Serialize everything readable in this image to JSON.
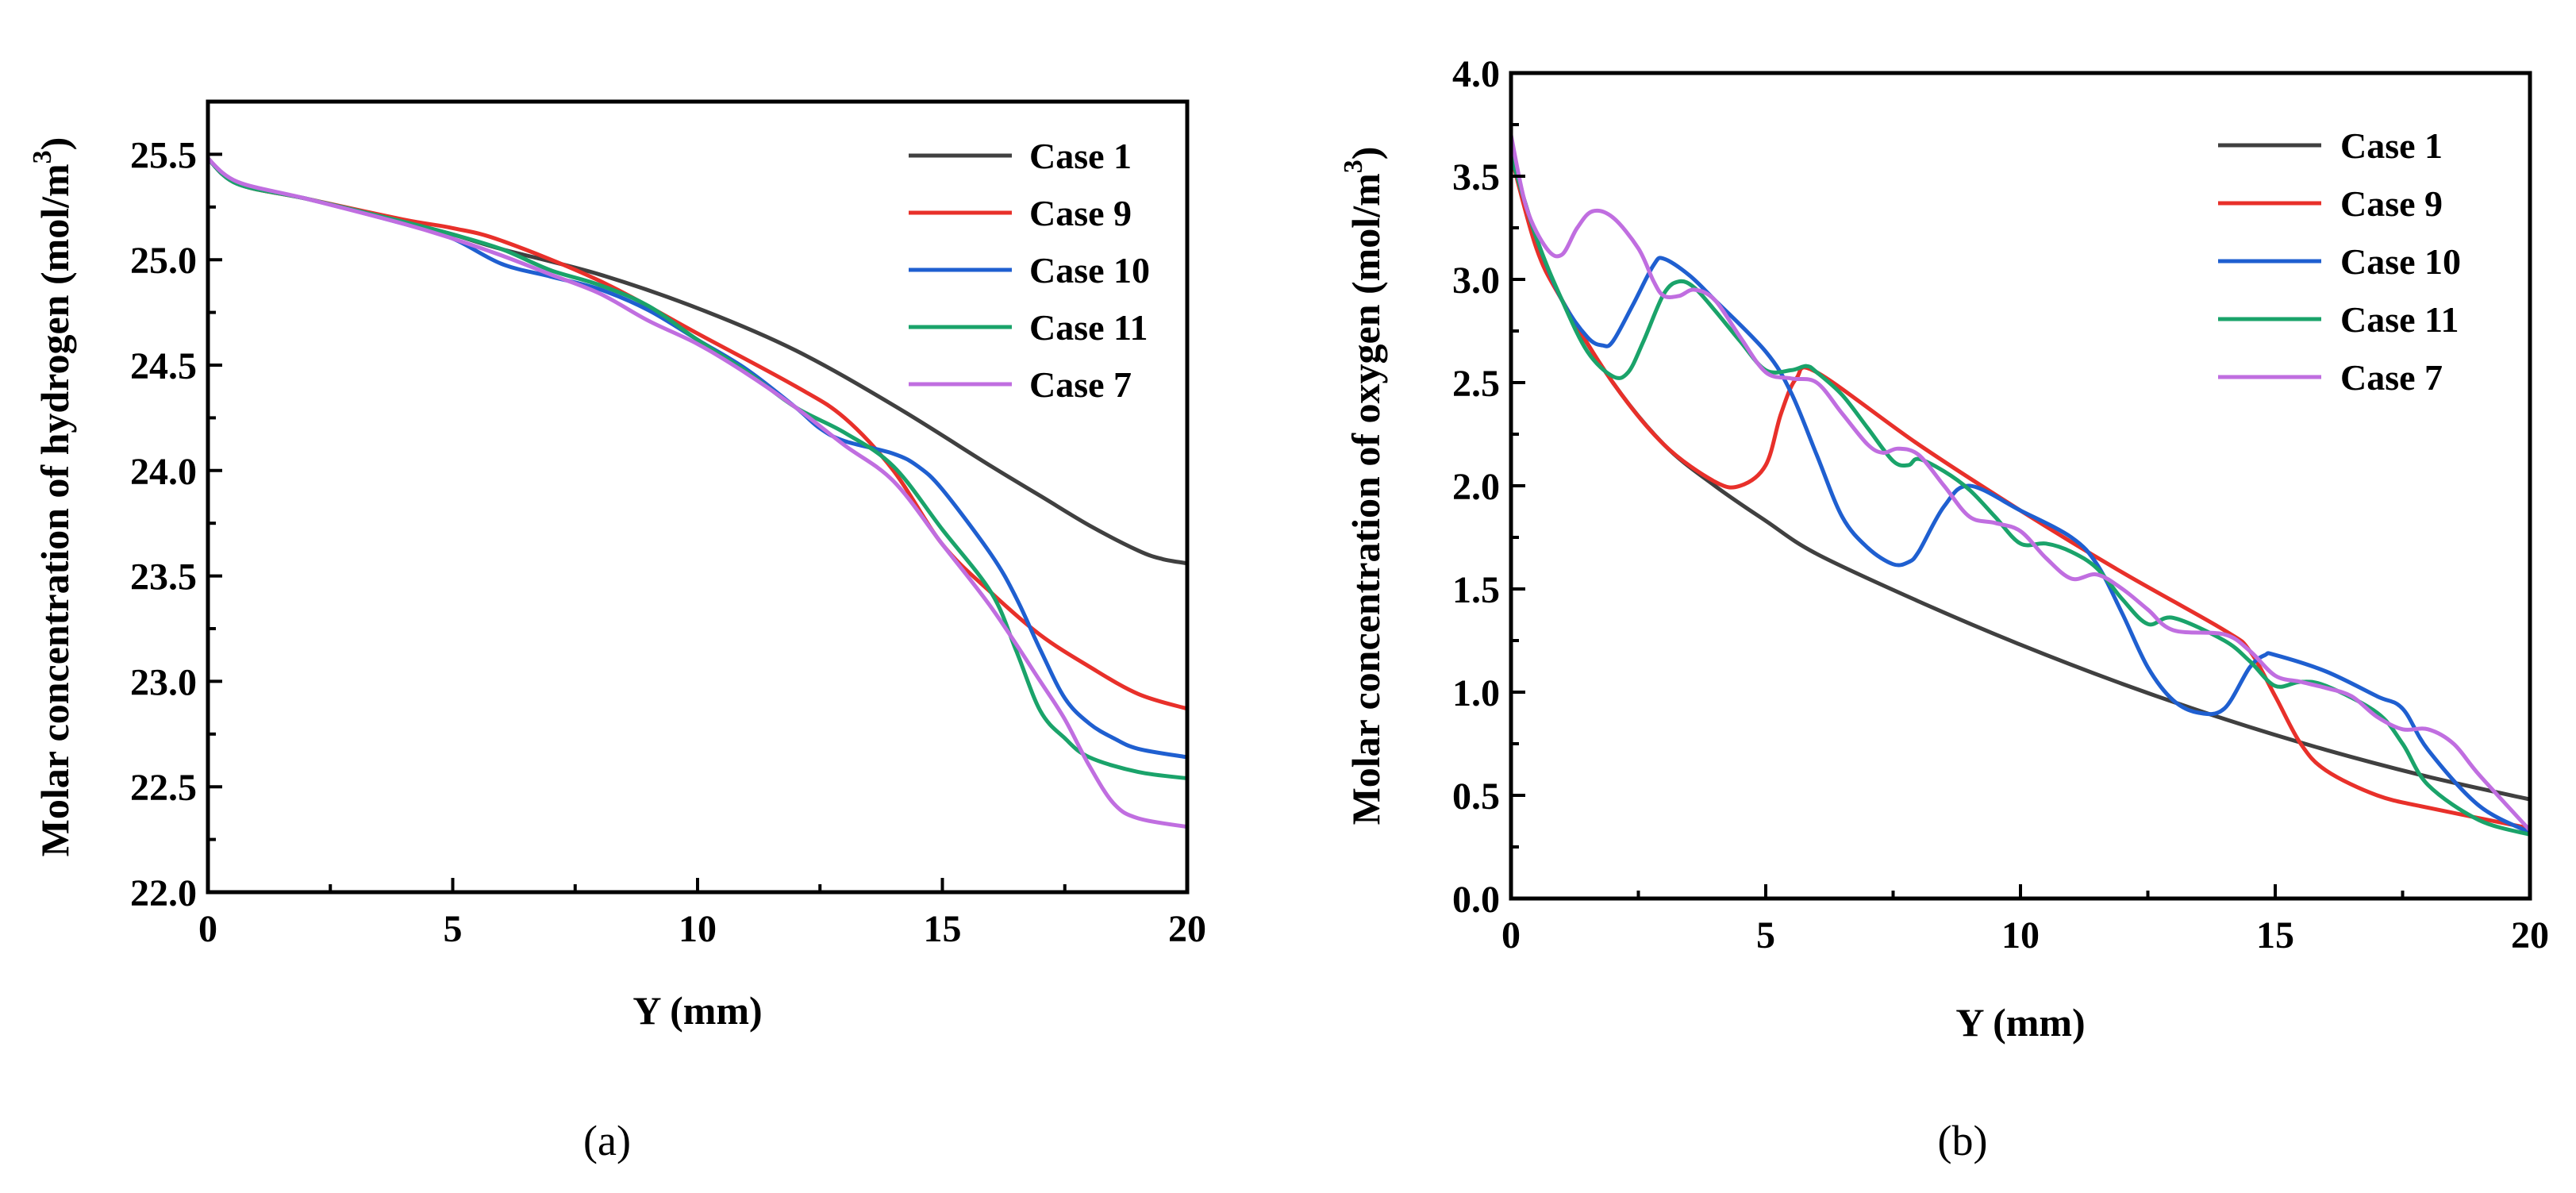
{
  "chart_data": [
    {
      "type": "line",
      "panel_label": "(a)",
      "xlabel": "Y (mm)",
      "ylabel_main": "Molar concentration of hydrogen (mol/m",
      "ylabel_sup": "3",
      "ylabel_close": ")",
      "xlim": [
        0,
        20
      ],
      "ylim": [
        22.0,
        25.75
      ],
      "xticks": [
        0,
        5,
        10,
        15,
        20
      ],
      "yticks": [
        22.0,
        22.5,
        23.0,
        23.5,
        24.0,
        24.5,
        25.0,
        25.5
      ],
      "legend_position": "top-right",
      "series": [
        {
          "name": "Case 1",
          "color": "#404040",
          "x": [
            0,
            0.6,
            2,
            4,
            5,
            6,
            8,
            10,
            12,
            14,
            16,
            17,
            18,
            19,
            19.5,
            20
          ],
          "y": [
            25.48,
            25.36,
            25.29,
            25.18,
            25.12,
            25.05,
            24.93,
            24.77,
            24.57,
            24.31,
            24.02,
            23.88,
            23.74,
            23.62,
            23.58,
            23.56
          ]
        },
        {
          "name": "Case 9",
          "color": "#e8302a",
          "x": [
            0,
            0.6,
            2,
            4,
            5,
            6,
            8,
            10,
            12,
            13,
            14,
            15,
            16,
            17,
            18,
            19,
            20
          ],
          "y": [
            25.48,
            25.36,
            25.29,
            25.19,
            25.15,
            25.09,
            24.9,
            24.65,
            24.4,
            24.25,
            24.0,
            23.65,
            23.42,
            23.22,
            23.07,
            22.94,
            22.87
          ]
        },
        {
          "name": "Case 10",
          "color": "#1f5fd0",
          "x": [
            0,
            0.6,
            2,
            4,
            5,
            6,
            7,
            8,
            9,
            10,
            11,
            12,
            12.5,
            13,
            14,
            14.5,
            15,
            16,
            16.5,
            17,
            17.5,
            18,
            18.5,
            19,
            20
          ],
          "y": [
            25.48,
            25.36,
            25.29,
            25.17,
            25.1,
            24.98,
            24.92,
            24.86,
            24.76,
            24.62,
            24.48,
            24.3,
            24.2,
            24.14,
            24.08,
            24.02,
            23.91,
            23.6,
            23.4,
            23.15,
            22.92,
            22.8,
            22.73,
            22.68,
            22.64
          ]
        },
        {
          "name": "Case 11",
          "color": "#1aa36a",
          "x": [
            0,
            0.6,
            2,
            4,
            5,
            6,
            7,
            8,
            9,
            10,
            11,
            12,
            13,
            14,
            15,
            16,
            16.5,
            17,
            17.5,
            18,
            19,
            20
          ],
          "y": [
            25.48,
            25.36,
            25.29,
            25.18,
            25.12,
            25.05,
            24.95,
            24.88,
            24.78,
            24.62,
            24.47,
            24.3,
            24.18,
            24.02,
            23.72,
            23.42,
            23.15,
            22.86,
            22.73,
            22.64,
            22.57,
            22.54
          ]
        },
        {
          "name": "Case 7",
          "color": "#c06ee0",
          "x": [
            0,
            0.6,
            2,
            4,
            5,
            6,
            7,
            8,
            9,
            10,
            11,
            12,
            13,
            14,
            15,
            16,
            17,
            17.5,
            18,
            18.5,
            19,
            20
          ],
          "y": [
            25.48,
            25.37,
            25.29,
            25.17,
            25.1,
            25.02,
            24.93,
            24.84,
            24.71,
            24.6,
            24.46,
            24.3,
            24.12,
            23.95,
            23.65,
            23.35,
            23.0,
            22.82,
            22.6,
            22.42,
            22.35,
            22.31
          ]
        }
      ]
    },
    {
      "type": "line",
      "panel_label": "(b)",
      "xlabel": "Y (mm)",
      "ylabel_main": "Molar concentration of oxygen (mol/m",
      "ylabel_sup": "3",
      "ylabel_close": ")",
      "xlim": [
        0,
        20
      ],
      "ylim": [
        0.0,
        4.0
      ],
      "xticks": [
        0,
        5,
        10,
        15,
        20
      ],
      "yticks": [
        0.0,
        0.5,
        1.0,
        1.5,
        2.0,
        2.5,
        3.0,
        3.5,
        4.0
      ],
      "legend_position": "top-right",
      "series": [
        {
          "name": "Case 1",
          "color": "#404040",
          "x": [
            0,
            0.5,
            1,
            2,
            3,
            4,
            5,
            6,
            8,
            10,
            12,
            14,
            16,
            18,
            20
          ],
          "y": [
            3.6,
            3.2,
            2.9,
            2.5,
            2.2,
            2.0,
            1.83,
            1.67,
            1.44,
            1.23,
            1.04,
            0.87,
            0.72,
            0.59,
            0.48
          ]
        },
        {
          "name": "Case 9",
          "color": "#e8302a",
          "x": [
            0,
            0.5,
            1,
            2,
            3,
            4,
            4.5,
            5,
            5.3,
            5.6,
            6,
            8,
            10,
            12,
            14,
            14.5,
            15,
            15.5,
            16,
            17,
            18,
            20
          ],
          "y": [
            3.6,
            3.15,
            2.9,
            2.5,
            2.2,
            2.02,
            2.0,
            2.1,
            2.35,
            2.52,
            2.55,
            2.2,
            1.88,
            1.58,
            1.3,
            1.2,
            0.98,
            0.75,
            0.62,
            0.5,
            0.44,
            0.34
          ]
        },
        {
          "name": "Case 10",
          "color": "#1f5fd0",
          "x": [
            0,
            0.5,
            1,
            1.5,
            1.8,
            2,
            2.4,
            2.8,
            3,
            3.5,
            4,
            5,
            5.5,
            6,
            6.5,
            7,
            7.5,
            7.8,
            8,
            8.5,
            9,
            10,
            11,
            11.5,
            12,
            12.5,
            13,
            13.5,
            14,
            14.5,
            14.8,
            15,
            16,
            17,
            17.5,
            18,
            19,
            20
          ],
          "y": [
            3.6,
            3.2,
            2.9,
            2.72,
            2.68,
            2.7,
            2.88,
            3.07,
            3.1,
            3.02,
            2.9,
            2.65,
            2.45,
            2.15,
            1.85,
            1.7,
            1.62,
            1.63,
            1.68,
            1.9,
            2.0,
            1.88,
            1.75,
            1.62,
            1.38,
            1.12,
            0.96,
            0.9,
            0.92,
            1.12,
            1.18,
            1.18,
            1.1,
            0.98,
            0.92,
            0.72,
            0.45,
            0.32
          ]
        },
        {
          "name": "Case 11",
          "color": "#1aa36a",
          "x": [
            0,
            0.5,
            1,
            1.5,
            2,
            2.3,
            2.6,
            3,
            3.3,
            3.6,
            4,
            4.5,
            5,
            5.5,
            5.8,
            6,
            6.5,
            7,
            7.5,
            7.8,
            8,
            8.5,
            9,
            9.5,
            10,
            10.5,
            11,
            11.5,
            12,
            12.5,
            13,
            14,
            14.5,
            15,
            15.5,
            16,
            17,
            17.5,
            18,
            19,
            20
          ],
          "y": [
            3.6,
            3.2,
            2.9,
            2.65,
            2.53,
            2.55,
            2.7,
            2.93,
            2.99,
            2.96,
            2.85,
            2.7,
            2.56,
            2.56,
            2.58,
            2.55,
            2.44,
            2.28,
            2.12,
            2.1,
            2.13,
            2.07,
            1.98,
            1.85,
            1.72,
            1.72,
            1.68,
            1.6,
            1.45,
            1.33,
            1.36,
            1.25,
            1.15,
            1.03,
            1.05,
            1.03,
            0.9,
            0.75,
            0.55,
            0.38,
            0.31
          ]
        },
        {
          "name": "Case 7",
          "color": "#c06ee0",
          "x": [
            0,
            0.3,
            0.7,
            1,
            1.3,
            1.6,
            2,
            2.5,
            2.8,
            3,
            3.3,
            3.6,
            4,
            4.5,
            5,
            5.5,
            6,
            6.5,
            7,
            7.3,
            7.6,
            8,
            8.5,
            9,
            9.5,
            10,
            10.5,
            11,
            11.5,
            12,
            12.5,
            13,
            14,
            14.5,
            15,
            15.5,
            16,
            16.5,
            17,
            17.5,
            18,
            18.5,
            19,
            20
          ],
          "y": [
            3.7,
            3.35,
            3.15,
            3.12,
            3.25,
            3.33,
            3.3,
            3.15,
            2.99,
            2.92,
            2.92,
            2.95,
            2.9,
            2.72,
            2.55,
            2.52,
            2.5,
            2.35,
            2.2,
            2.16,
            2.18,
            2.15,
            2.0,
            1.85,
            1.82,
            1.78,
            1.65,
            1.55,
            1.57,
            1.5,
            1.4,
            1.3,
            1.28,
            1.2,
            1.08,
            1.05,
            1.02,
            0.98,
            0.88,
            0.82,
            0.82,
            0.75,
            0.6,
            0.33
          ]
        }
      ]
    }
  ]
}
